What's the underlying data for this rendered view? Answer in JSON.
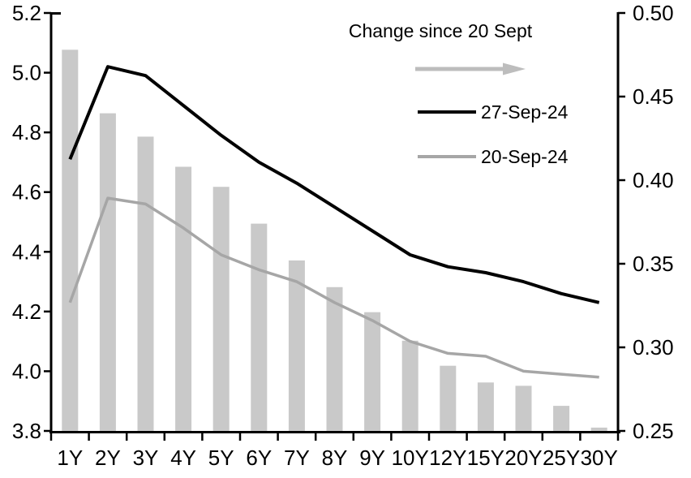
{
  "chart_data": {
    "type": "combo",
    "title": "",
    "categories": [
      "1Y",
      "2Y",
      "3Y",
      "4Y",
      "5Y",
      "6Y",
      "7Y",
      "8Y",
      "9Y",
      "10Y",
      "12Y",
      "15Y",
      "20Y",
      "25Y",
      "30Y"
    ],
    "series": [
      {
        "name": "Change since 20 Sept",
        "type": "bar",
        "axis": "right",
        "color": "#c9c9c9",
        "values": [
          0.478,
          0.44,
          0.426,
          0.408,
          0.396,
          0.374,
          0.352,
          0.336,
          0.321,
          0.304,
          0.289,
          0.279,
          0.277,
          0.265,
          0.252
        ]
      },
      {
        "name": "27-Sep-24",
        "type": "line",
        "axis": "left",
        "color": "#000000",
        "values": [
          4.71,
          5.02,
          4.99,
          4.89,
          4.79,
          4.7,
          4.63,
          4.55,
          4.47,
          4.39,
          4.35,
          4.33,
          4.3,
          4.26,
          4.23
        ]
      },
      {
        "name": "20-Sep-24",
        "type": "line",
        "axis": "left",
        "color": "#a6a6a6",
        "values": [
          4.23,
          4.58,
          4.56,
          4.48,
          4.39,
          4.34,
          4.3,
          4.23,
          4.17,
          4.1,
          4.06,
          4.05,
          4.0,
          3.99,
          3.98
        ]
      }
    ],
    "axes": {
      "left": {
        "min": 3.8,
        "max": 5.2,
        "step": 0.2,
        "tick_labels": [
          "5.2",
          "5.0",
          "4.8",
          "4.6",
          "4.4",
          "4.2",
          "4.0",
          "3.8"
        ]
      },
      "right": {
        "min": 0.25,
        "max": 0.5,
        "step": 0.05,
        "tick_labels": [
          "0.50",
          "0.45",
          "0.40",
          "0.35",
          "0.30",
          "0.25"
        ]
      }
    },
    "grid": false,
    "legend": {
      "position": "top-right-inside",
      "annotation": "Change since 20 Sept",
      "arrow_icon": "right-arrow",
      "arrow_color": "#bdbdbd",
      "entries": [
        {
          "label": "27-Sep-24",
          "color": "#000000"
        },
        {
          "label": "20-Sep-24",
          "color": "#a6a6a6"
        }
      ]
    }
  }
}
